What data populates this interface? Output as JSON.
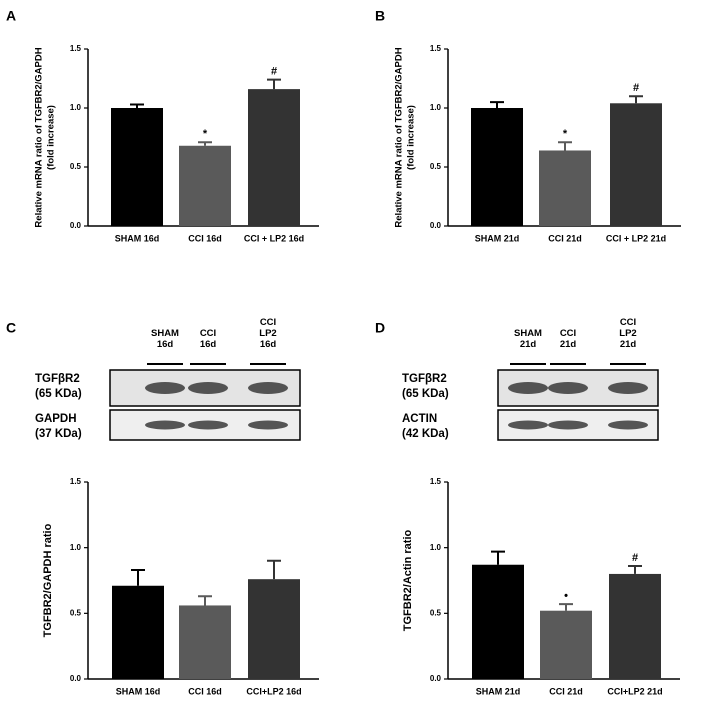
{
  "chart_data": [
    {
      "type": "bar",
      "panel": "A",
      "ylabel": [
        "Relative mRNA ratio of TGFBR2/GAPDH",
        "(fold increase)"
      ],
      "categories": [
        "SHAM 16d",
        "CCI 16d",
        "CCI + LP2 16d"
      ],
      "values": [
        1.0,
        0.68,
        1.16
      ],
      "errors": [
        0.03,
        0.03,
        0.08
      ],
      "marks": [
        null,
        "*",
        "#"
      ],
      "colors": [
        "#000000",
        "#5a5a5a",
        "#333333"
      ],
      "ylim": [
        0,
        1.5
      ],
      "yticks": [
        {
          "value": 0,
          "label": "0.0"
        },
        0.5,
        {
          "value": 1,
          "label": "1.0"
        },
        1.5
      ]
    },
    {
      "type": "bar",
      "panel": "B",
      "ylabel": [
        "Relative mRNA ratio of TGFBR2/GAPDH",
        "(fold increase)"
      ],
      "categories": [
        "SHAM 21d",
        "CCI 21d",
        "CCI + LP2 21d"
      ],
      "values": [
        1.0,
        0.64,
        1.04
      ],
      "errors": [
        0.05,
        0.07,
        0.06
      ],
      "marks": [
        null,
        "*",
        "#"
      ],
      "colors": [
        "#000000",
        "#5a5a5a",
        "#333333"
      ],
      "ylim": [
        0,
        1.5
      ],
      "yticks": [
        {
          "value": 0,
          "label": "0.0"
        },
        0.5,
        {
          "value": 1,
          "label": "1.0"
        },
        1.5
      ]
    },
    {
      "type": "bar",
      "panel": "C",
      "ylabel": [
        "TGFBR2/GAPDH ratio"
      ],
      "categories": [
        "SHAM 16d",
        "CCI 16d",
        "CCI+LP2 16d"
      ],
      "values": [
        0.71,
        0.56,
        0.76
      ],
      "errors": [
        0.12,
        0.07,
        0.14
      ],
      "marks": [
        null,
        null,
        null
      ],
      "colors": [
        "#000000",
        "#5a5a5a",
        "#333333"
      ],
      "ylim": [
        0,
        1.5
      ],
      "yticks": [
        {
          "value": 0,
          "label": "0.0"
        },
        0.5,
        {
          "value": 1,
          "label": "1.0"
        },
        1.5
      ]
    },
    {
      "type": "bar",
      "panel": "D",
      "ylabel": [
        "TGFBR2/Actin ratio"
      ],
      "categories": [
        "SHAM 21d",
        "CCI 21d",
        "CCI+LP2 21d"
      ],
      "values": [
        0.87,
        0.52,
        0.8
      ],
      "errors": [
        0.1,
        0.05,
        0.06
      ],
      "marks": [
        null,
        "•",
        "#"
      ],
      "colors": [
        "#000000",
        "#5a5a5a",
        "#333333"
      ],
      "ylim": [
        0,
        1.5
      ],
      "yticks": [
        {
          "value": 0,
          "label": "0.0"
        },
        0.5,
        {
          "value": 1,
          "label": "1.0"
        },
        1.5
      ]
    }
  ],
  "blots": [
    {
      "lanes": [
        [
          "SHAM",
          "16d"
        ],
        [
          "CCI",
          "16d"
        ],
        [
          "CCI",
          "LP2",
          "16d"
        ]
      ],
      "bands": [
        [
          "TGFβR2",
          "(65 KDa)"
        ],
        [
          "GAPDH",
          "(37 KDa)"
        ]
      ]
    },
    {
      "lanes": [
        [
          "SHAM",
          "21d"
        ],
        [
          "CCI",
          "21d"
        ],
        [
          "CCI",
          "LP2",
          "21d"
        ]
      ],
      "bands": [
        [
          "TGFβR2",
          "(65 KDa)"
        ],
        [
          "ACTIN",
          "(42 KDa)"
        ]
      ]
    }
  ]
}
